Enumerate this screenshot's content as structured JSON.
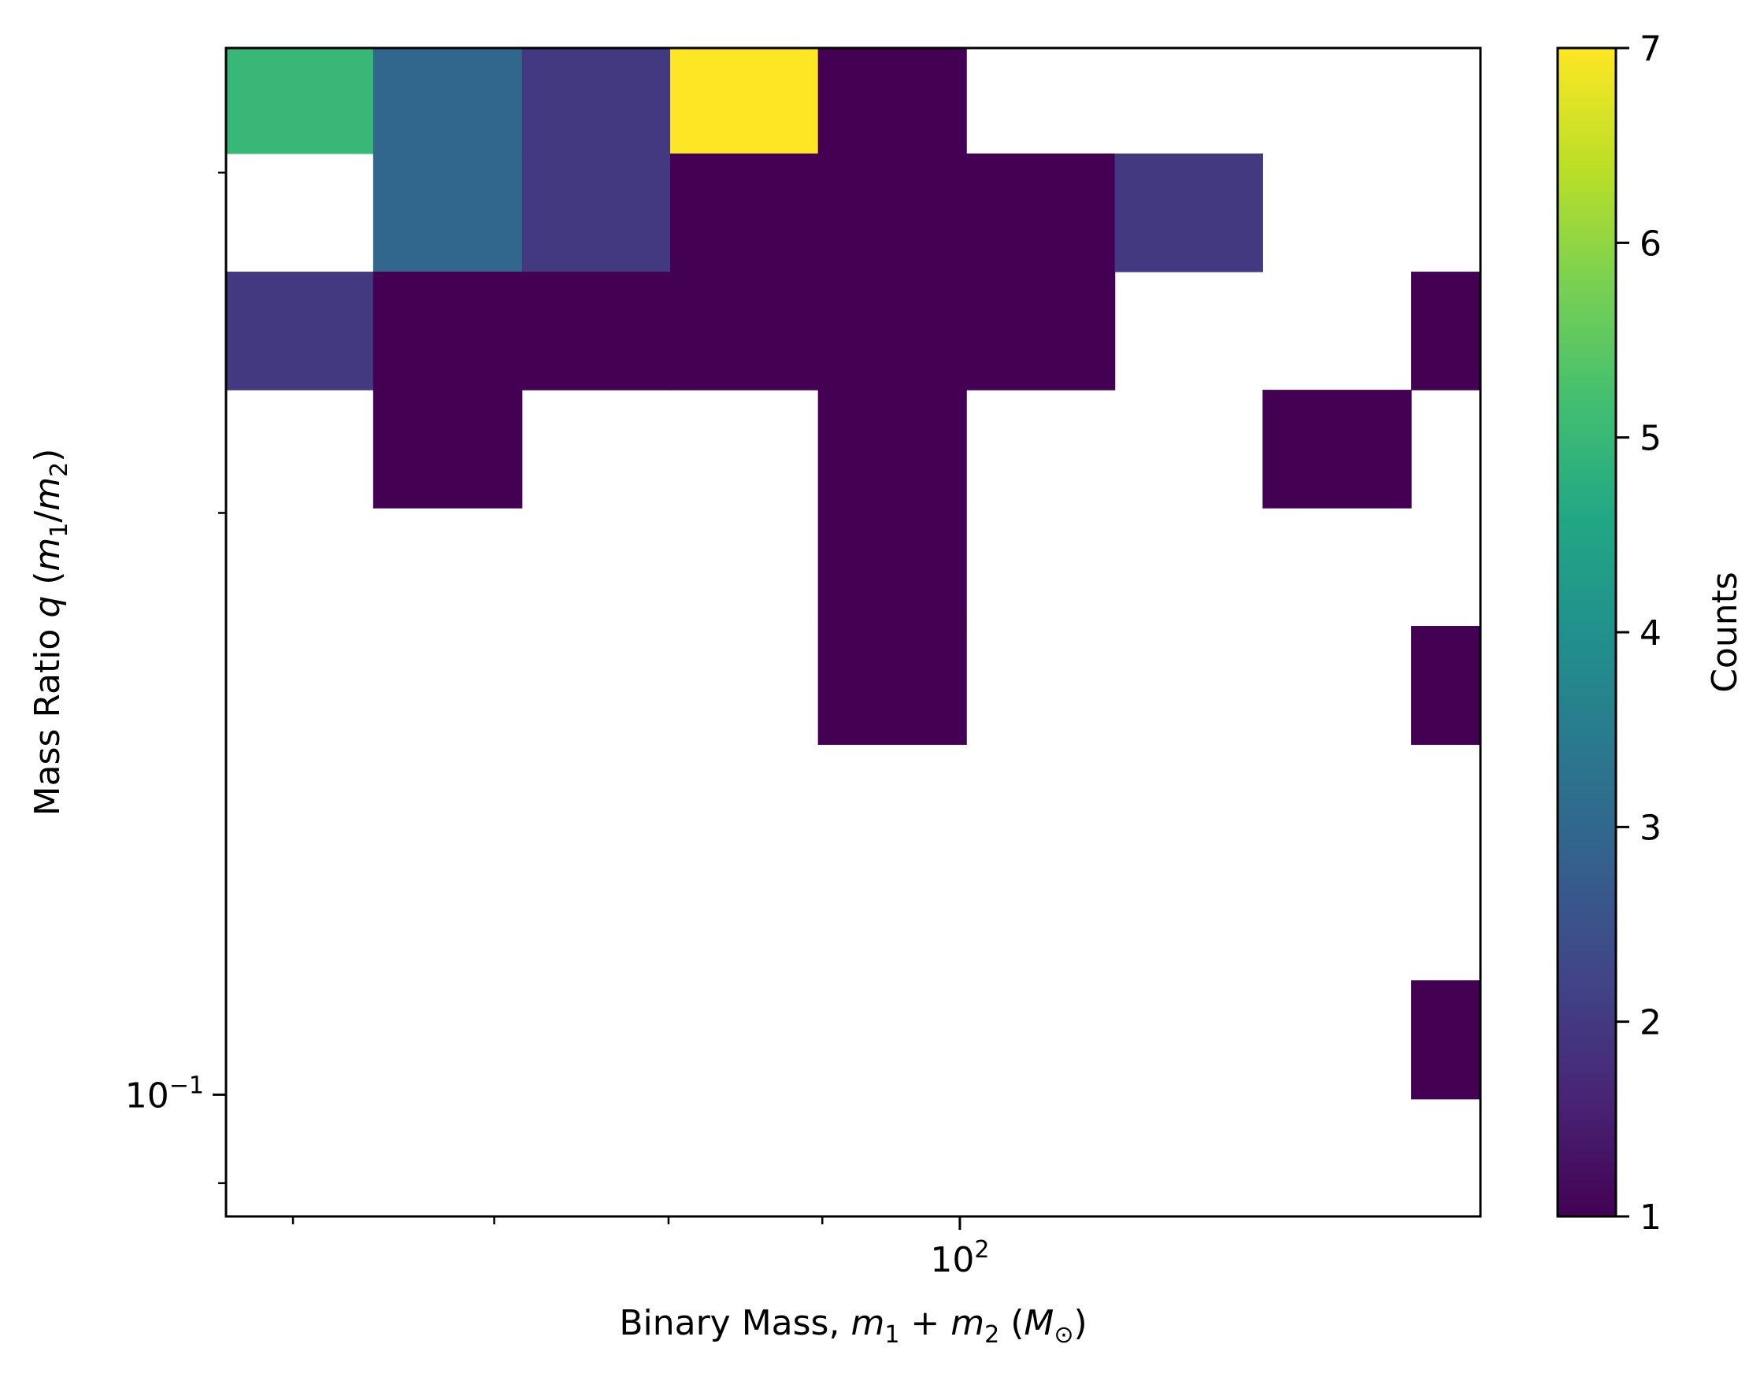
{
  "chart_data": {
    "type": "heatmap",
    "xlabel": {
      "pre": "Binary Mass, ",
      "a": "m",
      "a_sub": "1",
      "op": " + ",
      "b": "m",
      "b_sub": "2",
      "unit_open": " (",
      "unit": "M",
      "unit_sub": "⊙",
      "unit_close": ")"
    },
    "ylabel": {
      "pre": "Mass Ratio ",
      "q": "q",
      "open": " (",
      "a": "m",
      "a_sub": "1",
      "slash": "/",
      "b": "m",
      "b_sub": "2",
      "close": ")"
    },
    "x_scale": "log",
    "y_scale": "log",
    "xlim": [
      57,
      149
    ],
    "ylim": [
      0.0865,
      0.348
    ],
    "x_edges": [
      57,
      63.8,
      71.5,
      80.1,
      89.7,
      100.5,
      112.6,
      126.1,
      141.3,
      149
    ],
    "y_edges": [
      0.0865,
      0.0995,
      0.1146,
      0.1319,
      0.1518,
      0.1748,
      0.2012,
      0.2316,
      0.2666,
      0.3069,
      0.348
    ],
    "x_tick_label": {
      "base": "10",
      "exp": "2",
      "value": 100
    },
    "y_tick_label": {
      "base": "10",
      "exp": "−1",
      "value": 0.1
    },
    "cells": [
      {
        "x": 0,
        "y": 0,
        "count": 5
      },
      {
        "x": 1,
        "y": 0,
        "count": 3
      },
      {
        "x": 2,
        "y": 0,
        "count": 2
      },
      {
        "x": 3,
        "y": 0,
        "count": 7
      },
      {
        "x": 4,
        "y": 0,
        "count": 1
      },
      {
        "x": 1,
        "y": 1,
        "count": 3
      },
      {
        "x": 2,
        "y": 1,
        "count": 2
      },
      {
        "x": 3,
        "y": 1,
        "count": 1
      },
      {
        "x": 4,
        "y": 1,
        "count": 1
      },
      {
        "x": 5,
        "y": 1,
        "count": 1
      },
      {
        "x": 6,
        "y": 1,
        "count": 2
      },
      {
        "x": 0,
        "y": 2,
        "count": 2
      },
      {
        "x": 1,
        "y": 2,
        "count": 1
      },
      {
        "x": 2,
        "y": 2,
        "count": 1
      },
      {
        "x": 3,
        "y": 2,
        "count": 1
      },
      {
        "x": 4,
        "y": 2,
        "count": 1
      },
      {
        "x": 5,
        "y": 2,
        "count": 1
      },
      {
        "x": 8,
        "y": 2,
        "count": 1
      },
      {
        "x": 1,
        "y": 3,
        "count": 1
      },
      {
        "x": 4,
        "y": 3,
        "count": 1
      },
      {
        "x": 7,
        "y": 3,
        "count": 1
      },
      {
        "x": 4,
        "y": 4,
        "count": 1
      },
      {
        "x": 4,
        "y": 5,
        "count": 1
      },
      {
        "x": 8,
        "y": 5,
        "count": 1
      },
      {
        "x": 8,
        "y": 8,
        "count": 1
      }
    ],
    "colorbar": {
      "label": "Counts",
      "range": [
        1,
        7
      ],
      "ticks": [
        "1",
        "2",
        "3",
        "4",
        "5",
        "6",
        "7"
      ],
      "colormap": "viridis"
    },
    "grid": false
  }
}
